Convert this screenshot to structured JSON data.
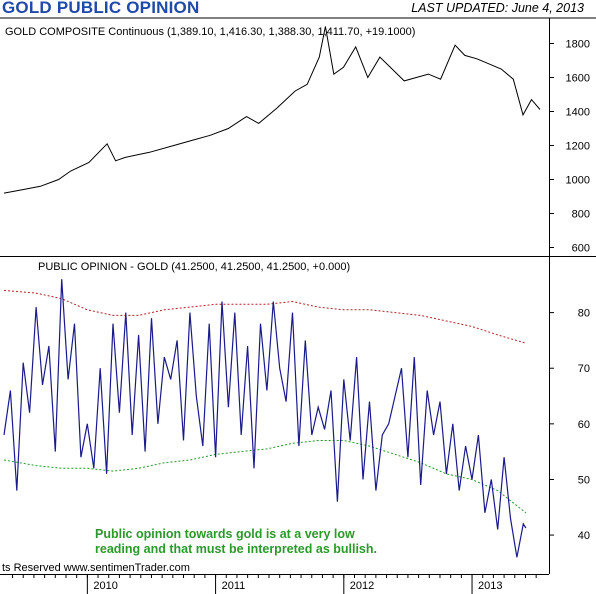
{
  "header": {
    "title": "GOLD PUBLIC OPINION",
    "updated": "LAST UPDATED:  June 4, 2013"
  },
  "footer": {
    "copyright": "ts Reserved  www.sentimenTrader.com",
    "note_line1": "Public opinion towards gold is at a very low",
    "note_line2": "reading and that must be interpreted as bullish."
  },
  "colors": {
    "title": "#1f4aa8",
    "price_line": "#000000",
    "opinion_line": "#1a1a8c",
    "upper_band": "#b22222",
    "lower_band": "#1f9a1f",
    "note": "#2a9a2a"
  },
  "chart_data": [
    {
      "type": "line",
      "panel": "top",
      "label": "GOLD COMPOSITE Continuous (1,389.10, 1,416.30, 1,388.30, 1,411.70, +19.1000)",
      "ylim": [
        550,
        1950
      ],
      "yticks": [
        600,
        800,
        1000,
        1200,
        1400,
        1600,
        1800
      ],
      "series": [
        {
          "kind": "price",
          "x": [
            2009.0,
            2009.15,
            2009.3,
            2009.45,
            2009.55,
            2009.7,
            2009.85,
            2009.92,
            2010.0,
            2010.2,
            2010.4,
            2010.55,
            2010.7,
            2010.85,
            2011.0,
            2011.1,
            2011.25,
            2011.4,
            2011.5,
            2011.6,
            2011.65,
            2011.72,
            2011.8,
            2011.9,
            2012.0,
            2012.1,
            2012.2,
            2012.3,
            2012.4,
            2012.5,
            2012.6,
            2012.72,
            2012.8,
            2012.9,
            2013.0,
            2013.1,
            2013.2,
            2013.28,
            2013.35,
            2013.42
          ],
          "y": [
            920,
            940,
            960,
            1000,
            1050,
            1100,
            1210,
            1110,
            1130,
            1160,
            1200,
            1230,
            1260,
            1300,
            1370,
            1330,
            1420,
            1520,
            1560,
            1720,
            1900,
            1620,
            1660,
            1780,
            1600,
            1720,
            1650,
            1580,
            1600,
            1620,
            1590,
            1790,
            1730,
            1710,
            1680,
            1650,
            1590,
            1380,
            1470,
            1412
          ]
        }
      ]
    },
    {
      "type": "line",
      "panel": "bottom",
      "label": "PUBLIC OPINION - GOLD (41.2500, 41.2500, 41.2500, +0.000)",
      "ylim": [
        33,
        90
      ],
      "yticks": [
        40,
        50,
        60,
        70,
        80
      ],
      "xticks": [
        "2010",
        "2011",
        "2012",
        "2013"
      ],
      "xtick_years": [
        2010,
        2011,
        2012,
        2013
      ],
      "xlim": [
        2009.35,
        2013.53
      ],
      "series": [
        {
          "kind": "opinion",
          "x": [
            2009.35,
            2009.4,
            2009.45,
            2009.5,
            2009.55,
            2009.6,
            2009.65,
            2009.7,
            2009.75,
            2009.8,
            2009.85,
            2009.9,
            2009.95,
            2010.0,
            2010.05,
            2010.1,
            2010.15,
            2010.2,
            2010.25,
            2010.3,
            2010.35,
            2010.4,
            2010.45,
            2010.5,
            2010.55,
            2010.6,
            2010.65,
            2010.7,
            2010.75,
            2010.8,
            2010.85,
            2010.9,
            2010.95,
            2011.0,
            2011.05,
            2011.1,
            2011.15,
            2011.2,
            2011.25,
            2011.3,
            2011.35,
            2011.4,
            2011.45,
            2011.5,
            2011.55,
            2011.6,
            2011.65,
            2011.7,
            2011.75,
            2011.8,
            2011.85,
            2011.9,
            2011.95,
            2012.0,
            2012.05,
            2012.1,
            2012.15,
            2012.2,
            2012.25,
            2012.3,
            2012.35,
            2012.4,
            2012.45,
            2012.5,
            2012.55,
            2012.6,
            2012.65,
            2012.7,
            2012.75,
            2012.8,
            2012.85,
            2012.9,
            2012.95,
            2013.0,
            2013.05,
            2013.1,
            2013.15,
            2013.2,
            2013.25,
            2013.3,
            2013.35,
            2013.4,
            2013.42
          ],
          "y": [
            58,
            66,
            48,
            71,
            62,
            81,
            67,
            74,
            55,
            86,
            68,
            78,
            54,
            60,
            52,
            70,
            51,
            78,
            62,
            80,
            58,
            76,
            55,
            79,
            60,
            72,
            68,
            75,
            57,
            80,
            65,
            56,
            78,
            54,
            82,
            63,
            80,
            58,
            74,
            52,
            78,
            66,
            82,
            70,
            64,
            80,
            56,
            75,
            58,
            63,
            59,
            66,
            46,
            68,
            57,
            72,
            50,
            64,
            48,
            58,
            60,
            65,
            70,
            54,
            72,
            49,
            66,
            58,
            64,
            51,
            60,
            48,
            56,
            50,
            58,
            44,
            50,
            41,
            54,
            43,
            36,
            42,
            41.25
          ]
        },
        {
          "kind": "upper_band",
          "x": [
            2009.35,
            2009.6,
            2009.8,
            2010.0,
            2010.2,
            2010.4,
            2010.6,
            2010.8,
            2011.0,
            2011.2,
            2011.4,
            2011.6,
            2011.8,
            2012.0,
            2012.2,
            2012.4,
            2012.6,
            2012.8,
            2013.0,
            2013.2,
            2013.42
          ],
          "y": [
            84,
            83.5,
            82.5,
            80.5,
            79.5,
            79.5,
            80.5,
            81,
            81.5,
            81.5,
            81.5,
            82,
            81,
            80.5,
            80.5,
            80,
            79.5,
            78.5,
            77.5,
            76,
            74.5
          ]
        },
        {
          "kind": "lower_band",
          "x": [
            2009.35,
            2009.6,
            2009.8,
            2010.0,
            2010.2,
            2010.4,
            2010.6,
            2010.8,
            2011.0,
            2011.2,
            2011.4,
            2011.6,
            2011.8,
            2012.0,
            2012.2,
            2012.4,
            2012.6,
            2012.8,
            2013.0,
            2013.2,
            2013.42
          ],
          "y": [
            53.5,
            52.5,
            52,
            52,
            51.5,
            52,
            53,
            53.5,
            54.5,
            55,
            55.5,
            56.5,
            57,
            57,
            56,
            54.5,
            53,
            51,
            50,
            48,
            44
          ]
        }
      ]
    }
  ]
}
